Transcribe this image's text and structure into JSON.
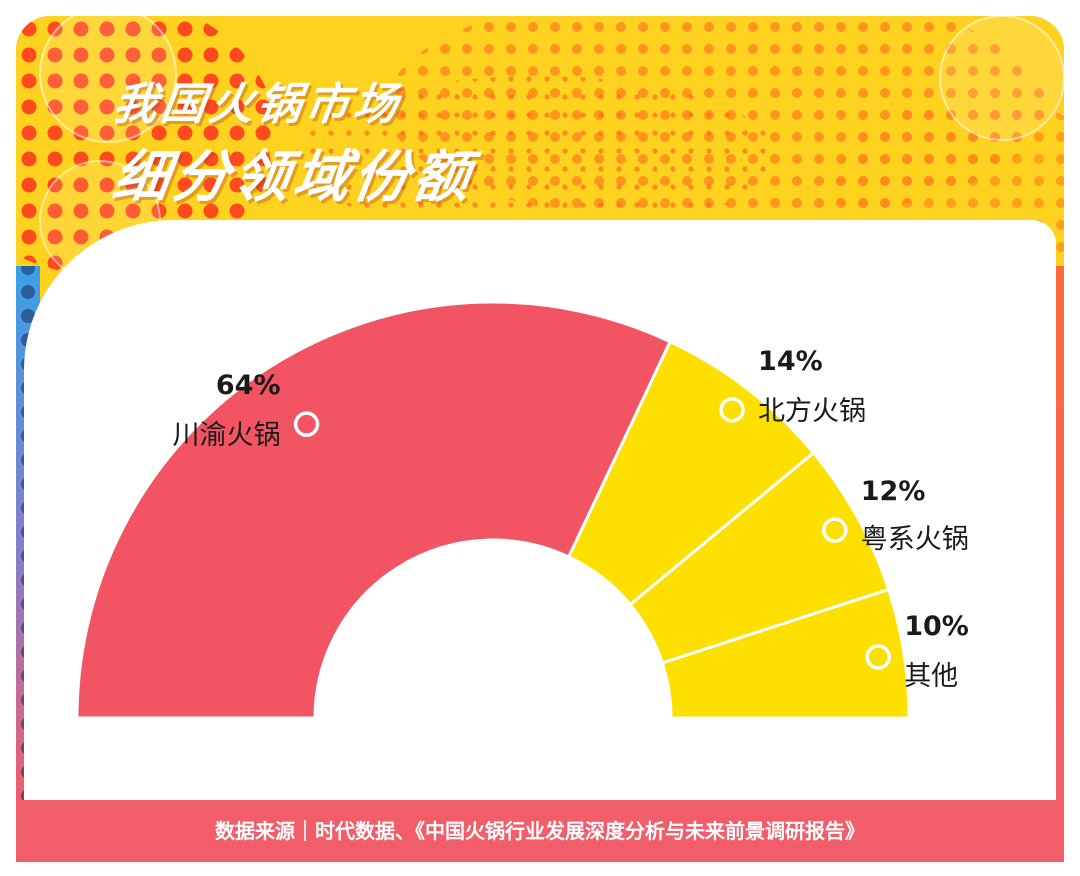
{
  "title": {
    "line1": "我国火锅市场",
    "line2": "细分领域份额"
  },
  "colors": {
    "background": "#ffd21f",
    "accent_red": "#f25463",
    "accent_yellow": "#fde000",
    "footer": "#f25d6a"
  },
  "chart_data": {
    "type": "pie",
    "shape": "semi-donut",
    "unit": "%",
    "slices": [
      {
        "label": "川渝火锅",
        "value": 64,
        "display": "64%",
        "color": "#f25463"
      },
      {
        "label": "北方火锅",
        "value": 14,
        "display": "14%",
        "color": "#fde000"
      },
      {
        "label": "粤系火锅",
        "value": 12,
        "display": "12%",
        "color": "#fde000"
      },
      {
        "label": "其他",
        "value": 10,
        "display": "10%",
        "color": "#fde000"
      }
    ]
  },
  "footer": {
    "source": "数据来源｜时代数据、《中国火锅行业发展深度分析与未来前景调研报告》"
  }
}
